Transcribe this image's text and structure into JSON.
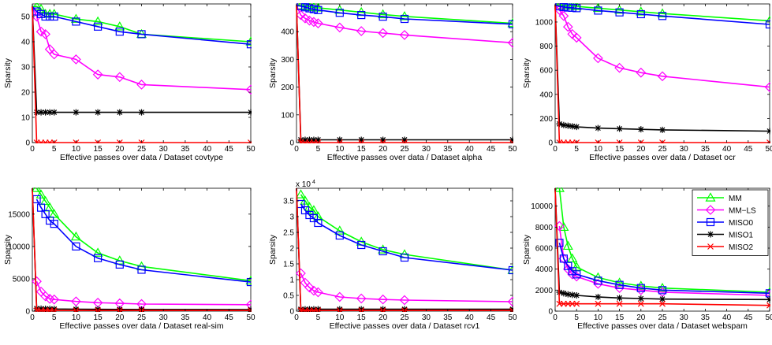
{
  "colors": {
    "MM": "#00ff00",
    "MM-LS": "#ff00ff",
    "MISO0": "#0000ff",
    "MISO1": "#000000",
    "MISO2": "#ff0000"
  },
  "legend_labels": [
    "MM",
    "MM−LS",
    "MISO0",
    "MISO1",
    "MISO2"
  ],
  "chart_data": [
    {
      "type": "line",
      "xlabel": "Effective passes over data / Dataset covtype",
      "ylabel": "Sparsity",
      "xlim": [
        0,
        50
      ],
      "ylim": [
        0,
        55
      ],
      "xticks": [
        0,
        5,
        10,
        15,
        20,
        25,
        30,
        35,
        40,
        45,
        50
      ],
      "yticks": [
        0,
        10,
        20,
        30,
        40,
        50
      ],
      "scale_note": "",
      "legend": false,
      "series": [
        {
          "name": "MM",
          "marker": "triangle",
          "x": [
            0,
            1,
            2,
            3,
            4,
            5,
            10,
            15,
            20,
            25,
            50
          ],
          "y": [
            54,
            54,
            53,
            51,
            51,
            51,
            49,
            48,
            46,
            43,
            40
          ]
        },
        {
          "name": "MM-LS",
          "marker": "diamond",
          "x": [
            0,
            1,
            2,
            3,
            4,
            5,
            10,
            15,
            20,
            25,
            50
          ],
          "y": [
            54,
            50,
            44,
            43,
            37,
            35,
            33,
            27,
            26,
            23,
            21
          ]
        },
        {
          "name": "MISO0",
          "marker": "square",
          "x": [
            0,
            1,
            2,
            3,
            4,
            5,
            10,
            15,
            20,
            25,
            50
          ],
          "y": [
            54,
            52,
            51,
            50,
            50,
            50,
            48,
            46,
            44,
            43,
            39
          ]
        },
        {
          "name": "MISO1",
          "marker": "star",
          "x": [
            0,
            1,
            2,
            3,
            4,
            5,
            10,
            15,
            20,
            25,
            50
          ],
          "y": [
            54,
            12,
            12,
            12,
            12,
            12,
            12,
            12,
            12,
            12,
            12
          ]
        },
        {
          "name": "MISO2",
          "marker": "x",
          "x": [
            0,
            1,
            2,
            3,
            4,
            5,
            10,
            15,
            20,
            25,
            50
          ],
          "y": [
            54,
            0,
            0,
            0,
            0,
            0,
            0,
            0,
            0,
            0,
            0
          ]
        }
      ]
    },
    {
      "type": "line",
      "xlabel": "Effective passes over data / Dataset alpha",
      "ylabel": "Sparsity",
      "xlim": [
        0,
        50
      ],
      "ylim": [
        0,
        500
      ],
      "xticks": [
        0,
        5,
        10,
        15,
        20,
        25,
        30,
        35,
        40,
        45,
        50
      ],
      "yticks": [
        0,
        100,
        200,
        300,
        400
      ],
      "scale_note": "",
      "legend": false,
      "series": [
        {
          "name": "MM",
          "marker": "triangle",
          "x": [
            0,
            1,
            2,
            3,
            4,
            5,
            10,
            15,
            20,
            25,
            50
          ],
          "y": [
            495,
            494,
            492,
            490,
            488,
            486,
            478,
            470,
            462,
            455,
            430
          ]
        },
        {
          "name": "MM-LS",
          "marker": "diamond",
          "x": [
            0,
            1,
            2,
            3,
            4,
            5,
            10,
            15,
            20,
            25,
            50
          ],
          "y": [
            495,
            460,
            448,
            440,
            435,
            430,
            415,
            402,
            395,
            388,
            360
          ]
        },
        {
          "name": "MISO0",
          "marker": "square",
          "x": [
            0,
            1,
            2,
            3,
            4,
            5,
            10,
            15,
            20,
            25,
            50
          ],
          "y": [
            495,
            492,
            488,
            484,
            481,
            478,
            468,
            460,
            454,
            446,
            427
          ]
        },
        {
          "name": "MISO1",
          "marker": "star",
          "x": [
            0,
            1,
            2,
            3,
            4,
            5,
            10,
            15,
            20,
            25,
            50
          ],
          "y": [
            495,
            10,
            10,
            10,
            10,
            10,
            10,
            10,
            10,
            10,
            10
          ]
        },
        {
          "name": "MISO2",
          "marker": "x",
          "x": [
            0,
            1,
            2,
            3,
            4,
            5,
            10,
            15,
            20,
            25,
            50
          ],
          "y": [
            495,
            0,
            0,
            0,
            0,
            0,
            0,
            0,
            0,
            0,
            0
          ]
        }
      ]
    },
    {
      "type": "line",
      "xlabel": "Effective passes over data / Dataset ocr",
      "ylabel": "Sparsity",
      "xlim": [
        0,
        50
      ],
      "ylim": [
        0,
        1150
      ],
      "xticks": [
        0,
        5,
        10,
        15,
        20,
        25,
        30,
        35,
        40,
        45,
        50
      ],
      "yticks": [
        0,
        200,
        400,
        600,
        800,
        1000
      ],
      "scale_note": "",
      "legend": false,
      "series": [
        {
          "name": "MM",
          "marker": "triangle",
          "x": [
            0,
            1,
            2,
            3,
            4,
            5,
            10,
            15,
            20,
            25,
            50
          ],
          "y": [
            1140,
            1140,
            1138,
            1136,
            1134,
            1130,
            1115,
            1100,
            1085,
            1070,
            1010
          ]
        },
        {
          "name": "MM-LS",
          "marker": "diamond",
          "x": [
            0,
            1,
            2,
            3,
            4,
            5,
            10,
            15,
            20,
            25,
            50
          ],
          "y": [
            1140,
            1100,
            1050,
            960,
            900,
            870,
            700,
            620,
            580,
            550,
            460
          ]
        },
        {
          "name": "MISO0",
          "marker": "square",
          "x": [
            0,
            1,
            2,
            3,
            4,
            5,
            10,
            15,
            20,
            25,
            50
          ],
          "y": [
            1140,
            1130,
            1125,
            1120,
            1118,
            1115,
            1095,
            1080,
            1065,
            1050,
            980
          ]
        },
        {
          "name": "MISO1",
          "marker": "star",
          "x": [
            0,
            1,
            2,
            3,
            4,
            5,
            10,
            15,
            20,
            25,
            50
          ],
          "y": [
            1140,
            155,
            145,
            140,
            135,
            130,
            120,
            115,
            110,
            105,
            95
          ]
        },
        {
          "name": "MISO2",
          "marker": "x",
          "x": [
            0,
            1,
            2,
            3,
            4,
            5,
            10,
            15,
            20,
            25,
            50
          ],
          "y": [
            1140,
            0,
            0,
            0,
            0,
            0,
            0,
            0,
            0,
            0,
            0
          ]
        }
      ]
    },
    {
      "type": "line",
      "xlabel": "Effective passes over data / Dataset real-sim",
      "ylabel": "Sparsity",
      "xlim": [
        0,
        50
      ],
      "ylim": [
        0,
        19000
      ],
      "xticks": [
        0,
        5,
        10,
        15,
        20,
        25,
        30,
        35,
        40,
        45,
        50
      ],
      "yticks": [
        0,
        5000,
        10000,
        15000
      ],
      "scale_note": "",
      "legend": false,
      "series": [
        {
          "name": "MM",
          "marker": "triangle",
          "x": [
            1,
            2,
            3,
            4,
            5,
            10,
            15,
            20,
            25,
            50
          ],
          "y": [
            19000,
            18000,
            17000,
            16000,
            15000,
            11500,
            9000,
            7800,
            6900,
            4700
          ]
        },
        {
          "name": "MM-LS",
          "marker": "diamond",
          "x": [
            1,
            2,
            3,
            4,
            5,
            10,
            15,
            20,
            25,
            50
          ],
          "y": [
            4600,
            3000,
            2300,
            1900,
            1800,
            1500,
            1300,
            1200,
            1100,
            1000
          ]
        },
        {
          "name": "MISO0",
          "marker": "square",
          "x": [
            1,
            2,
            3,
            4,
            5,
            10,
            15,
            20,
            25,
            50
          ],
          "y": [
            17300,
            16000,
            15000,
            14000,
            13500,
            10000,
            8200,
            7200,
            6400,
            4500
          ]
        },
        {
          "name": "MISO1",
          "marker": "star",
          "x": [
            0,
            1,
            2,
            3,
            4,
            5,
            10,
            15,
            20,
            25,
            50
          ],
          "y": [
            19000,
            400,
            380,
            360,
            350,
            330,
            300,
            280,
            270,
            260,
            240
          ]
        },
        {
          "name": "MISO2",
          "marker": "x",
          "x": [
            0,
            1,
            2,
            3,
            4,
            5,
            10,
            15,
            20,
            25,
            50
          ],
          "y": [
            19000,
            120,
            110,
            110,
            100,
            100,
            100,
            100,
            100,
            100,
            100
          ]
        }
      ]
    },
    {
      "type": "line",
      "xlabel": "Effective passes over data / Dataset rcv1",
      "ylabel": "Sparsity",
      "xlim": [
        0,
        50
      ],
      "ylim": [
        0,
        3.9
      ],
      "xticks": [
        0,
        5,
        10,
        15,
        20,
        25,
        30,
        35,
        40,
        45,
        50
      ],
      "yticks": [
        0,
        0.5,
        1,
        1.5,
        2,
        2.5,
        3,
        3.5
      ],
      "scale_note": "x 10",
      "scale_exp": "4",
      "legend": false,
      "series": [
        {
          "name": "MM",
          "marker": "triangle",
          "x": [
            1,
            2,
            3,
            4,
            5,
            10,
            15,
            20,
            25,
            50
          ],
          "y": [
            3.7,
            3.5,
            3.3,
            3.2,
            3.0,
            2.55,
            2.2,
            1.95,
            1.8,
            1.3
          ]
        },
        {
          "name": "MM-LS",
          "marker": "diamond",
          "x": [
            1,
            2,
            3,
            4,
            5,
            10,
            15,
            20,
            25,
            50
          ],
          "y": [
            1.2,
            0.9,
            0.75,
            0.65,
            0.6,
            0.45,
            0.4,
            0.37,
            0.35,
            0.3
          ]
        },
        {
          "name": "MISO0",
          "marker": "square",
          "x": [
            1,
            2,
            3,
            4,
            5,
            10,
            15,
            20,
            25,
            50
          ],
          "y": [
            3.4,
            3.2,
            3.05,
            2.95,
            2.8,
            2.4,
            2.1,
            1.9,
            1.7,
            1.3
          ]
        },
        {
          "name": "MISO1",
          "marker": "star",
          "x": [
            0,
            1,
            2,
            3,
            4,
            5,
            10,
            15,
            20,
            25,
            50
          ],
          "y": [
            3.9,
            0.06,
            0.06,
            0.06,
            0.06,
            0.06,
            0.06,
            0.06,
            0.06,
            0.06,
            0.06
          ]
        },
        {
          "name": "MISO2",
          "marker": "x",
          "x": [
            0,
            1,
            2,
            3,
            4,
            5,
            10,
            15,
            20,
            25,
            50
          ],
          "y": [
            3.9,
            0.02,
            0.02,
            0.02,
            0.02,
            0.02,
            0.02,
            0.02,
            0.02,
            0.02,
            0.02
          ]
        }
      ]
    },
    {
      "type": "line",
      "xlabel": "Effective passes over data / Dataset webspam",
      "ylabel": "Sparsity",
      "xlim": [
        0,
        50
      ],
      "ylim": [
        0,
        11700
      ],
      "xticks": [
        0,
        5,
        10,
        15,
        20,
        25,
        30,
        35,
        40,
        45,
        50
      ],
      "yticks": [
        0,
        2000,
        4000,
        6000,
        8000,
        10000
      ],
      "scale_note": "",
      "legend": true,
      "series": [
        {
          "name": "MM",
          "marker": "triangle",
          "x": [
            1,
            2,
            3,
            4,
            5,
            10,
            15,
            20,
            25,
            50
          ],
          "y": [
            11700,
            8000,
            6200,
            5000,
            4200,
            3200,
            2700,
            2400,
            2200,
            1800
          ]
        },
        {
          "name": "MM-LS",
          "marker": "diamond",
          "x": [
            1,
            2,
            3,
            4,
            5,
            10,
            15,
            20,
            25,
            50
          ],
          "y": [
            8100,
            5000,
            4000,
            3500,
            3300,
            2600,
            2200,
            2000,
            1800,
            1500
          ]
        },
        {
          "name": "MISO0",
          "marker": "square",
          "x": [
            1,
            2,
            3,
            4,
            5,
            10,
            15,
            20,
            25,
            50
          ],
          "y": [
            6500,
            5000,
            4300,
            3800,
            3500,
            2900,
            2500,
            2200,
            2000,
            1700
          ]
        },
        {
          "name": "MISO1",
          "marker": "star",
          "x": [
            0,
            1,
            2,
            3,
            4,
            5,
            10,
            15,
            20,
            25,
            50
          ],
          "y": [
            11700,
            1800,
            1700,
            1600,
            1550,
            1500,
            1350,
            1250,
            1200,
            1150,
            1100
          ]
        },
        {
          "name": "MISO2",
          "marker": "x",
          "x": [
            0,
            1,
            2,
            3,
            4,
            5,
            10,
            15,
            20,
            25,
            50
          ],
          "y": [
            11700,
            700,
            700,
            700,
            700,
            700,
            700,
            700,
            700,
            700,
            550
          ]
        }
      ]
    }
  ]
}
